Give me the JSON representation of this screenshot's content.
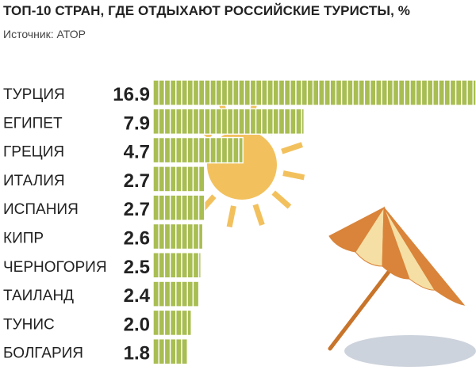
{
  "header": {
    "title": "ТОП-10 СТРАН, ГДЕ ОТДЫХАЮТ РОССИЙСКИЕ ТУРИСТЫ, %",
    "source": "Источник: АТОР"
  },
  "colors": {
    "bar": "#a8bd52",
    "bar_stroke": "#ffffff",
    "sun": "#f2c15e",
    "umbrella_orange": "#d9843a",
    "umbrella_cream": "#f6dfa5",
    "pole": "#c8742a",
    "shadow": "#cdd3dc"
  },
  "chart_data": {
    "type": "bar",
    "orientation": "horizontal",
    "categories": [
      "ТУРЦИЯ",
      "ЕГИПЕТ",
      "ГРЕЦИЯ",
      "ИТАЛИЯ",
      "ИСПАНИЯ",
      "КИПР",
      "ЧЕРНОГОРИЯ",
      "ТАИЛАНД",
      "ТУНИС",
      "БОЛГАРИЯ"
    ],
    "values": [
      16.9,
      7.9,
      4.7,
      2.7,
      2.7,
      2.6,
      2.5,
      2.4,
      2.0,
      1.8
    ],
    "value_labels": [
      "16.9",
      "7.9",
      "4.7",
      "2.7",
      "2.7",
      "2.6",
      "2.5",
      "2.4",
      "2.0",
      "1.8"
    ],
    "xlim": [
      0,
      16.9
    ],
    "grid": false,
    "legend": "none"
  }
}
